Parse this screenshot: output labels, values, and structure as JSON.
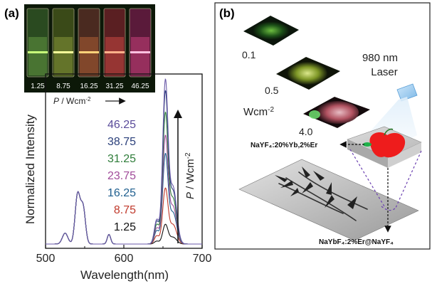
{
  "panel_a": {
    "label": "(a)",
    "inset": {
      "vials": [
        "1.25",
        "8.75",
        "16.25",
        "31.25",
        "46.25"
      ],
      "axis_label_prefix": "P",
      "axis_label_unit": " / Wcm",
      "axis_label_exp": "-2"
    },
    "side_arrow_label_prefix": "P",
    "side_arrow_label_unit": " / Wcm",
    "side_arrow_label_exp": "-2",
    "power_labels": [
      {
        "text": "46.25",
        "color": "#5a4b9a"
      },
      {
        "text": "38.75",
        "color": "#2a3f7a"
      },
      {
        "text": "31.25",
        "color": "#2f7d3a"
      },
      {
        "text": "23.75",
        "color": "#a14c9a"
      },
      {
        "text": "16.25",
        "color": "#1f5f8f"
      },
      {
        "text": "8.75",
        "color": "#c0392b"
      },
      {
        "text": "1.25",
        "color": "#111111"
      }
    ]
  },
  "panel_b": {
    "label": "(b)",
    "power_levels": [
      "0.1",
      "0.5",
      "4.0"
    ],
    "power_unit": "Wcm",
    "power_unit_exp": "-2",
    "laser_line1": "980 nm",
    "laser_line2": "Laser",
    "material_top": "NaYF₄:20%Yb,2%Er",
    "material_bottom": "NaYbF₄:2%Er@NaYF₄"
  },
  "chart_data": {
    "type": "line",
    "xlabel": "Wavelength(nm)",
    "ylabel": "Normalized Intensity",
    "xlim": [
      500,
      700
    ],
    "xticks": [
      500,
      600,
      700
    ],
    "grid": false,
    "legend": "none",
    "series": [
      {
        "name": "46.25",
        "color": "#6a5aa8",
        "peak_660": 1.0
      },
      {
        "name": "38.75",
        "color": "#2a3f7a",
        "peak_660": 0.93
      },
      {
        "name": "31.25",
        "color": "#2f7d3a",
        "peak_660": 0.8
      },
      {
        "name": "23.75",
        "color": "#a14c9a",
        "peak_660": 0.66
      },
      {
        "name": "16.25",
        "color": "#1f5f8f",
        "peak_660": 0.55
      },
      {
        "name": "8.75",
        "color": "#c0392b",
        "peak_660": 0.34
      },
      {
        "name": "1.25",
        "color": "#111111",
        "peak_660": 0.12
      }
    ],
    "green_peak_545": 0.31,
    "minor_peak_580": 0.06
  }
}
